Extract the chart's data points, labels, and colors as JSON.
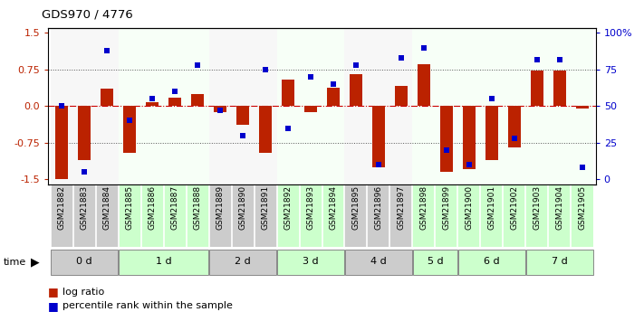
{
  "title": "GDS970 / 4776",
  "samples": [
    "GSM21882",
    "GSM21883",
    "GSM21884",
    "GSM21885",
    "GSM21886",
    "GSM21887",
    "GSM21888",
    "GSM21889",
    "GSM21890",
    "GSM21891",
    "GSM21892",
    "GSM21893",
    "GSM21894",
    "GSM21895",
    "GSM21896",
    "GSM21897",
    "GSM21898",
    "GSM21899",
    "GSM21900",
    "GSM21901",
    "GSM21902",
    "GSM21903",
    "GSM21904",
    "GSM21905"
  ],
  "log_ratio": [
    -1.5,
    -1.1,
    0.35,
    -0.95,
    0.08,
    0.18,
    0.25,
    -0.12,
    -0.38,
    -0.95,
    0.55,
    -0.12,
    0.38,
    0.65,
    -1.25,
    0.42,
    0.85,
    -1.35,
    -1.3,
    -1.1,
    -0.85,
    0.73,
    0.72,
    -0.05
  ],
  "percentile_rank": [
    50,
    5,
    88,
    40,
    55,
    60,
    78,
    47,
    30,
    75,
    35,
    70,
    65,
    78,
    10,
    83,
    90,
    20,
    10,
    55,
    28,
    82,
    82,
    8
  ],
  "time_groups": {
    "0 d": [
      0,
      1,
      2
    ],
    "1 d": [
      3,
      4,
      5,
      6
    ],
    "2 d": [
      7,
      8,
      9
    ],
    "3 d": [
      10,
      11,
      12
    ],
    "4 d": [
      13,
      14,
      15
    ],
    "5 d": [
      16,
      17
    ],
    "6 d": [
      18,
      19,
      20
    ],
    "7 d": [
      21,
      22,
      23
    ]
  },
  "group_colors": [
    "#cccccc",
    "#ccffcc",
    "#cccccc",
    "#ccffcc",
    "#cccccc",
    "#ccffcc",
    "#ccffcc",
    "#ccffcc"
  ],
  "bar_color": "#bb2200",
  "dot_color": "#0000cc",
  "ylim": [
    -1.6,
    1.6
  ],
  "yticks_left": [
    -1.5,
    -0.75,
    0.0,
    0.75,
    1.5
  ],
  "yticks_right": [
    0,
    25,
    50,
    75,
    100
  ],
  "background_color": "#ffffff",
  "dotted_line_color": "#555555",
  "zero_line_color": "#cc0000",
  "zero_line_style": "-.",
  "bar_width": 0.55
}
